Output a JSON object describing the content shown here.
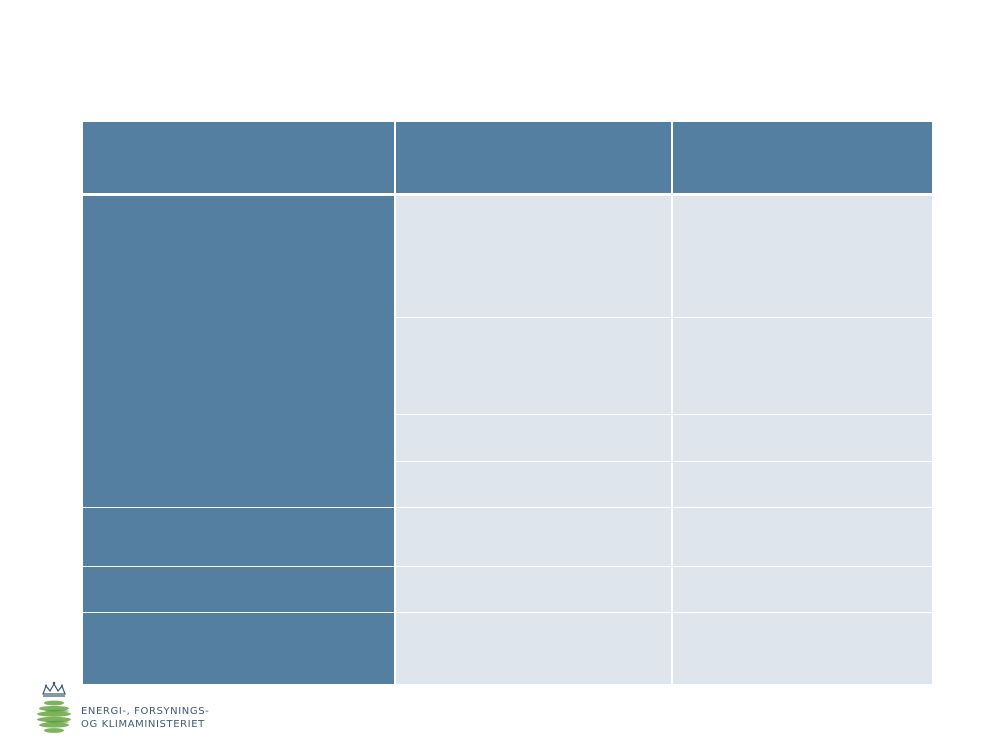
{
  "table": {
    "header": [
      "",
      "",
      ""
    ],
    "rows": [
      {
        "head": "",
        "cells": [
          "",
          ""
        ]
      },
      {
        "cells": [
          "",
          ""
        ]
      },
      {
        "cells": [
          "",
          ""
        ]
      },
      {
        "cells": [
          "",
          ""
        ]
      },
      {
        "head": "",
        "cells": [
          "",
          ""
        ]
      },
      {
        "head": "",
        "cells": [
          "",
          ""
        ]
      },
      {
        "head": "",
        "cells": [
          "",
          ""
        ]
      }
    ]
  },
  "colors": {
    "header_blue": "#557fa0",
    "cell_light": "#dee5ec",
    "logo_text": "#3d5a73",
    "crest_green": "#6aa84f"
  },
  "logo": {
    "line1": "ENERGI-, FORSYNINGS-",
    "line2": "OG KLIMAMINISTERIET",
    "icon": "crown-globe-icon"
  }
}
